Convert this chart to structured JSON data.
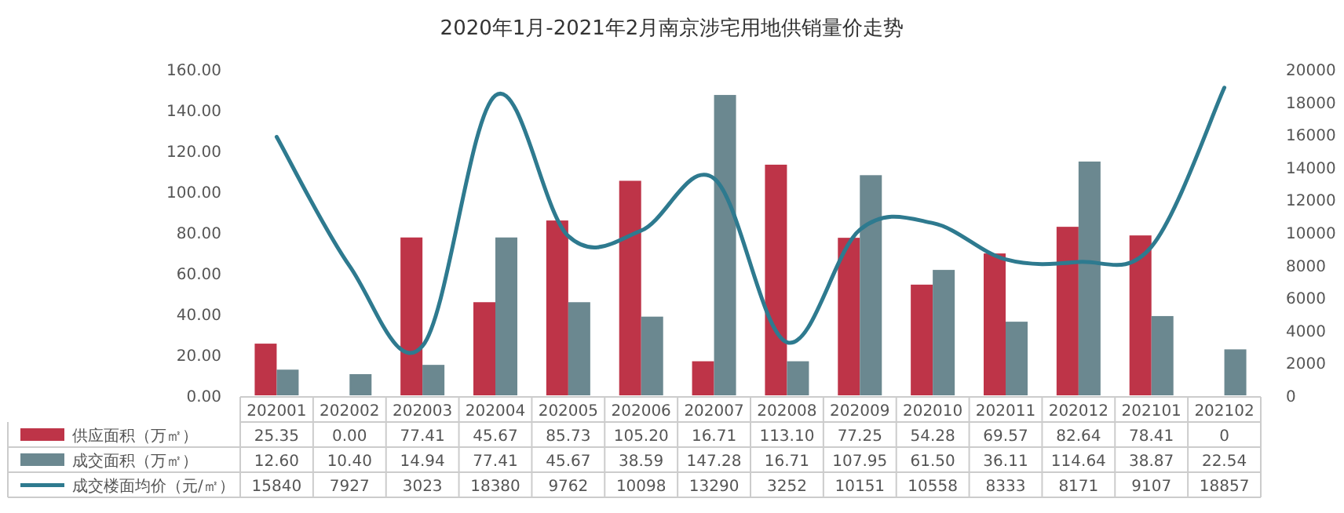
{
  "chart_data": {
    "type": "bar",
    "title": "2020年1月-2021年2月南京涉宅用地供销量价走势",
    "categories": [
      "202001",
      "202002",
      "202003",
      "202004",
      "202005",
      "202006",
      "202007",
      "202008",
      "202009",
      "202010",
      "202011",
      "202012",
      "202101",
      "202102"
    ],
    "series": [
      {
        "name": "供应面积（万㎡）",
        "color": "#be3448",
        "values": [
          25.35,
          0,
          77.41,
          45.67,
          85.73,
          105.2,
          16.71,
          113.1,
          77.25,
          54.28,
          69.57,
          82.64,
          78.41,
          0
        ],
        "value_labels": [
          "25.35",
          "0.00",
          "77.41",
          "45.67",
          "85.73",
          "105.20",
          "16.71",
          "113.10",
          "77.25",
          "54.28",
          "69.57",
          "82.64",
          "78.41",
          "0"
        ]
      },
      {
        "name": "成交面积（万㎡）",
        "color": "#6b8890",
        "values": [
          12.6,
          10.4,
          14.94,
          77.41,
          45.67,
          38.59,
          147.28,
          16.71,
          107.95,
          61.5,
          36.11,
          114.64,
          38.87,
          22.54
        ],
        "value_labels": [
          "12.60",
          "10.40",
          "14.94",
          "77.41",
          "45.67",
          "38.59",
          "147.28",
          "16.71",
          "107.95",
          "61.50",
          "36.11",
          "114.64",
          "38.87",
          "22.54"
        ]
      },
      {
        "name": "成交楼面均价（元/㎡）",
        "type": "line",
        "axis": "y2",
        "color": "#2e7a8f",
        "values": [
          15840,
          7927,
          3023,
          18380,
          9762,
          10098,
          13290,
          3252,
          10151,
          10558,
          8333,
          8171,
          9107,
          18857
        ],
        "value_labels": [
          "15840",
          "7927",
          "3023",
          "18380",
          "9762",
          "10098",
          "13290",
          "3252",
          "10151",
          "10558",
          "8333",
          "8171",
          "9107",
          "18857"
        ]
      }
    ],
    "ylim": [
      0,
      160
    ],
    "yticks": [
      {
        "value": 0,
        "label": "0.00"
      },
      {
        "value": 20,
        "label": "20.00"
      },
      {
        "value": 40,
        "label": "40.00"
      },
      {
        "value": 60,
        "label": "60.00"
      },
      {
        "value": 80,
        "label": "80.00"
      },
      {
        "value": 100,
        "label": "100.00"
      },
      {
        "value": 120,
        "label": "120.00"
      },
      {
        "value": 140,
        "label": "140.00"
      },
      {
        "value": 160,
        "label": "160.00"
      }
    ],
    "y2lim": [
      0,
      20000
    ],
    "y2ticks": [
      0,
      2000,
      4000,
      6000,
      8000,
      10000,
      12000,
      14000,
      16000,
      18000,
      20000
    ],
    "legend": "bottom left"
  }
}
